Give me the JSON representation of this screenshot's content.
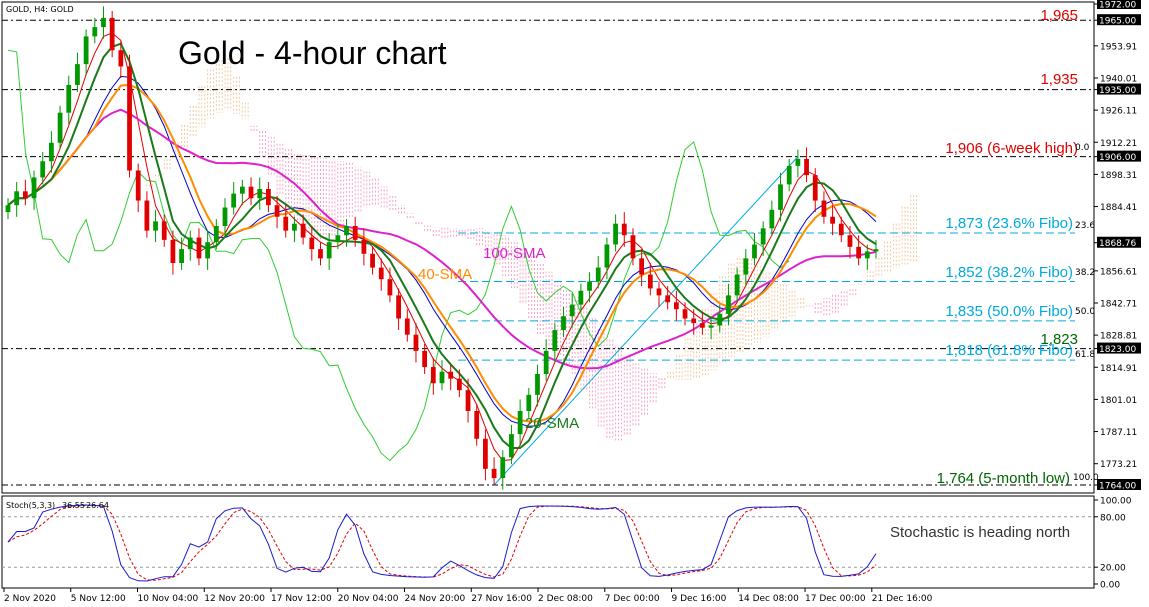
{
  "header": {
    "symbol_label": "GOLD, H4: GOLD"
  },
  "title": "Gold - 4-hour chart",
  "colors": {
    "background": "#ffffff",
    "candle_up": "#009900",
    "candle_down": "#e00000",
    "sma20": "#1a7a1a",
    "sma40": "#ff8c00",
    "sma100": "#dd22cc",
    "tenkan": "#e00000",
    "kijun": "#0000cc",
    "chikou": "#33cc33",
    "cloud_bull": "#f2c9a0",
    "cloud_bear": "#f5a0c8",
    "fibo": "#00aadd",
    "level_line": "#000000",
    "red_text": "#e00000",
    "green_text": "#006600",
    "stoch_main": "#1a1acc",
    "stoch_signal": "#e00000"
  },
  "chart_data": {
    "type": "candlestick",
    "timeframe": "H4",
    "symbol": "GOLD",
    "ylim": [
      1764.0,
      1972.0
    ],
    "y_ticks": [
      "1972.00",
      "1965.00",
      "1953.91",
      "1940.01",
      "1935.00",
      "1926.11",
      "1912.21",
      "1906.00",
      "1898.31",
      "1884.41",
      "1868.76",
      "1856.61",
      "1842.71",
      "1828.81",
      "1823.00",
      "1814.91",
      "1801.01",
      "1787.11",
      "1773.21",
      "1764.00"
    ],
    "x_ticks": [
      "2 Nov 2020",
      "5 Nov 12:00",
      "10 Nov 04:00",
      "12 Nov 20:00",
      "17 Nov 12:00",
      "20 Nov 04:00",
      "24 Nov 20:00",
      "27 Nov 16:00",
      "2 Dec 08:00",
      "7 Dec 00:00",
      "9 Dec 16:00",
      "14 Dec 08:00",
      "17 Dec 00:00",
      "21 Dec 16:00"
    ],
    "closes": [
      1885,
      1891,
      1888,
      1897,
      1904,
      1912,
      1925,
      1937,
      1946,
      1958,
      1962,
      1966,
      1952,
      1945,
      1900,
      1887,
      1874,
      1878,
      1870,
      1860,
      1866,
      1871,
      1862,
      1869,
      1876,
      1884,
      1890,
      1893,
      1888,
      1892,
      1885,
      1880,
      1874,
      1877,
      1871,
      1866,
      1862,
      1869,
      1872,
      1876,
      1870,
      1864,
      1858,
      1853,
      1846,
      1836,
      1829,
      1822,
      1815,
      1808,
      1813,
      1810,
      1805,
      1796,
      1784,
      1771,
      1767,
      1776,
      1786,
      1796,
      1803,
      1812,
      1822,
      1831,
      1837,
      1842,
      1848,
      1852,
      1858,
      1868,
      1877,
      1872,
      1862,
      1855,
      1849,
      1846,
      1843,
      1840,
      1836,
      1834,
      1832,
      1833,
      1838,
      1846,
      1855,
      1862,
      1868,
      1875,
      1883,
      1894,
      1902,
      1905,
      1898,
      1887,
      1880,
      1877,
      1872,
      1867,
      1862,
      1865,
      1866
    ],
    "horizontal_levels": [
      {
        "value": 1965,
        "label": "1,965"
      },
      {
        "value": 1935,
        "label": "1,935"
      },
      {
        "value": 1906,
        "label": "1,906 (6-week high)"
      },
      {
        "value": 1823,
        "label": "1,823"
      },
      {
        "value": 1764,
        "label": "1,764 (5-month low)"
      }
    ],
    "fibonacci": [
      {
        "pct": "0.0",
        "value": 1906
      },
      {
        "pct": "23.6",
        "value": 1873,
        "label": "1,873 (23.6% Fibo)"
      },
      {
        "pct": "38.2",
        "value": 1852,
        "label": "1,852 (38.2% Fibo)"
      },
      {
        "pct": "50.0",
        "value": 1835,
        "label": "1,835 (50.0% Fibo)"
      },
      {
        "pct": "61.8",
        "value": 1818,
        "label": "1,818 (61.8% Fibo)"
      },
      {
        "pct": "100.0",
        "value": 1764
      }
    ],
    "annotations": [
      "100-SMA",
      "40-SMA",
      "20-SMA"
    ],
    "indicator": {
      "name": "Stoch(5,3,3)",
      "main_value": "36.55",
      "signal_value": "26.64",
      "ylim": [
        0,
        100
      ],
      "y_ticks": [
        "100.00",
        "80.00",
        "20.00",
        "0.00"
      ],
      "note": "Stochastic is heading north"
    }
  }
}
